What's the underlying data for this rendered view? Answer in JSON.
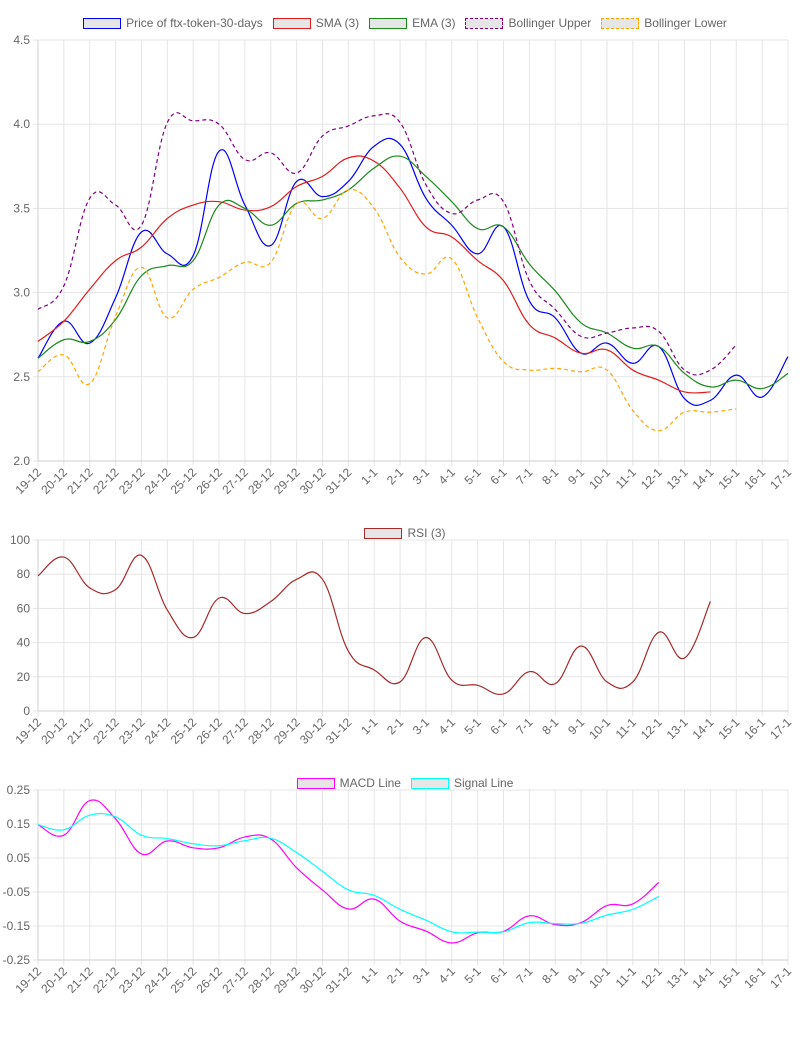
{
  "chart_data": [
    {
      "type": "line",
      "title": "",
      "x": [
        "19-12",
        "20-12",
        "21-12",
        "22-12",
        "23-12",
        "24-12",
        "25-12",
        "26-12",
        "27-12",
        "28-12",
        "29-12",
        "30-12",
        "31-12",
        "1-1",
        "2-1",
        "3-1",
        "4-1",
        "5-1",
        "6-1",
        "7-1",
        "8-1",
        "9-1",
        "10-1",
        "11-1",
        "12-1",
        "13-1",
        "14-1",
        "15-1",
        "16-1",
        "17-1"
      ],
      "ylim": [
        2.0,
        4.5
      ],
      "yticks": [
        "2.0",
        "2.5",
        "3.0",
        "3.5",
        "4.0",
        "4.5"
      ],
      "ytick_values": [
        2.0,
        2.5,
        3.0,
        3.5,
        4.0,
        4.5
      ],
      "grid": true,
      "legend_position": "top-center",
      "series": [
        {
          "name": "Price of ftx-token-30-days",
          "color": "#0000ff",
          "dash": false,
          "values": [
            2.61,
            2.83,
            2.7,
            2.97,
            3.36,
            3.23,
            3.22,
            3.84,
            3.52,
            3.28,
            3.66,
            3.57,
            3.66,
            3.87,
            3.88,
            3.56,
            3.4,
            3.23,
            3.39,
            2.95,
            2.85,
            2.64,
            2.7,
            2.58,
            2.68,
            2.37,
            2.36,
            2.51,
            2.38,
            2.62
          ]
        },
        {
          "name": "SMA (3)",
          "color": "#e31a1c",
          "dash": false,
          "values": [
            2.71,
            2.83,
            3.02,
            3.19,
            3.27,
            3.44,
            3.52,
            3.54,
            3.49,
            3.51,
            3.63,
            3.69,
            3.8,
            3.78,
            3.62,
            3.39,
            3.33,
            3.19,
            3.07,
            2.81,
            2.73,
            2.64,
            2.66,
            2.54,
            2.48,
            2.41,
            2.41,
            null,
            null,
            null
          ]
        },
        {
          "name": "EMA (3)",
          "color": "#1a8a1a",
          "dash": false,
          "values": [
            2.61,
            2.72,
            2.71,
            2.84,
            3.1,
            3.16,
            3.19,
            3.52,
            3.5,
            3.4,
            3.53,
            3.55,
            3.61,
            3.74,
            3.81,
            3.69,
            3.54,
            3.38,
            3.39,
            3.17,
            3.01,
            2.82,
            2.76,
            2.67,
            2.68,
            2.52,
            2.44,
            2.48,
            2.43,
            2.52
          ]
        },
        {
          "name": "Bollinger Upper",
          "color": "#800080",
          "dash": true,
          "values": [
            2.9,
            3.04,
            3.56,
            3.52,
            3.4,
            4.01,
            4.02,
            4.0,
            3.79,
            3.83,
            3.71,
            3.93,
            3.99,
            4.05,
            4.01,
            3.64,
            3.47,
            3.55,
            3.54,
            3.07,
            2.9,
            2.74,
            2.76,
            2.79,
            2.77,
            2.54,
            2.54,
            2.69,
            null,
            null
          ]
        },
        {
          "name": "Bollinger Lower",
          "color": "#ffa500",
          "dash": true,
          "values": [
            2.53,
            2.63,
            2.46,
            2.86,
            3.15,
            2.85,
            3.02,
            3.09,
            3.18,
            3.18,
            3.53,
            3.44,
            3.61,
            3.5,
            3.21,
            3.11,
            3.2,
            2.85,
            2.59,
            2.54,
            2.55,
            2.53,
            2.54,
            2.3,
            2.18,
            2.29,
            2.29,
            2.31,
            null,
            null
          ]
        }
      ]
    },
    {
      "type": "line",
      "title": "",
      "x": [
        "19-12",
        "20-12",
        "21-12",
        "22-12",
        "23-12",
        "24-12",
        "25-12",
        "26-12",
        "27-12",
        "28-12",
        "29-12",
        "30-12",
        "31-12",
        "1-1",
        "2-1",
        "3-1",
        "4-1",
        "5-1",
        "6-1",
        "7-1",
        "8-1",
        "9-1",
        "10-1",
        "11-1",
        "12-1",
        "13-1",
        "14-1",
        "15-1",
        "16-1",
        "17-1"
      ],
      "ylim": [
        0,
        100
      ],
      "yticks": [
        "0",
        "20",
        "40",
        "60",
        "80",
        "100"
      ],
      "ytick_values": [
        0,
        20,
        40,
        60,
        80,
        100
      ],
      "grid": true,
      "legend_position": "top-center",
      "series": [
        {
          "name": "RSI (3)",
          "color": "#a52a2a",
          "dash": false,
          "values": [
            79,
            90,
            72,
            71,
            91,
            59,
            43,
            66,
            57,
            64,
            77,
            77,
            35,
            24,
            17,
            43,
            18,
            15,
            10,
            23,
            16,
            38,
            17,
            17,
            46,
            31,
            64,
            null,
            null,
            null
          ]
        }
      ]
    },
    {
      "type": "line",
      "title": "",
      "x": [
        "19-12",
        "20-12",
        "21-12",
        "22-12",
        "23-12",
        "24-12",
        "25-12",
        "26-12",
        "27-12",
        "28-12",
        "29-12",
        "30-12",
        "31-12",
        "1-1",
        "2-1",
        "3-1",
        "4-1",
        "5-1",
        "6-1",
        "7-1",
        "8-1",
        "9-1",
        "10-1",
        "11-1",
        "12-1",
        "13-1",
        "14-1",
        "15-1",
        "16-1",
        "17-1"
      ],
      "ylim": [
        -0.25,
        0.25
      ],
      "yticks": [
        "-0.25",
        "-0.15",
        "-0.05",
        "0.05",
        "0.15",
        "0.25"
      ],
      "ytick_values": [
        -0.25,
        -0.15,
        -0.05,
        0.05,
        0.15,
        0.25
      ],
      "grid": true,
      "legend_position": "top-center",
      "series": [
        {
          "name": "MACD Line",
          "color": "#ff00ff",
          "dash": false,
          "values": [
            0.148,
            0.117,
            0.219,
            0.165,
            0.062,
            0.1,
            0.08,
            0.08,
            0.112,
            0.106,
            0.021,
            -0.044,
            -0.1,
            -0.071,
            -0.136,
            -0.165,
            -0.2,
            -0.17,
            -0.166,
            -0.12,
            -0.146,
            -0.14,
            -0.09,
            -0.085,
            -0.022,
            null,
            null,
            null,
            null,
            null
          ]
        },
        {
          "name": "Signal Line",
          "color": "#00ffff",
          "dash": false,
          "values": [
            0.148,
            0.133,
            0.176,
            0.171,
            0.117,
            0.107,
            0.092,
            0.086,
            0.101,
            0.108,
            0.066,
            0.011,
            -0.044,
            -0.06,
            -0.101,
            -0.133,
            -0.167,
            -0.168,
            -0.167,
            -0.14,
            -0.143,
            -0.142,
            -0.118,
            -0.101,
            -0.063,
            null,
            null,
            null,
            null,
            null
          ]
        }
      ]
    }
  ]
}
